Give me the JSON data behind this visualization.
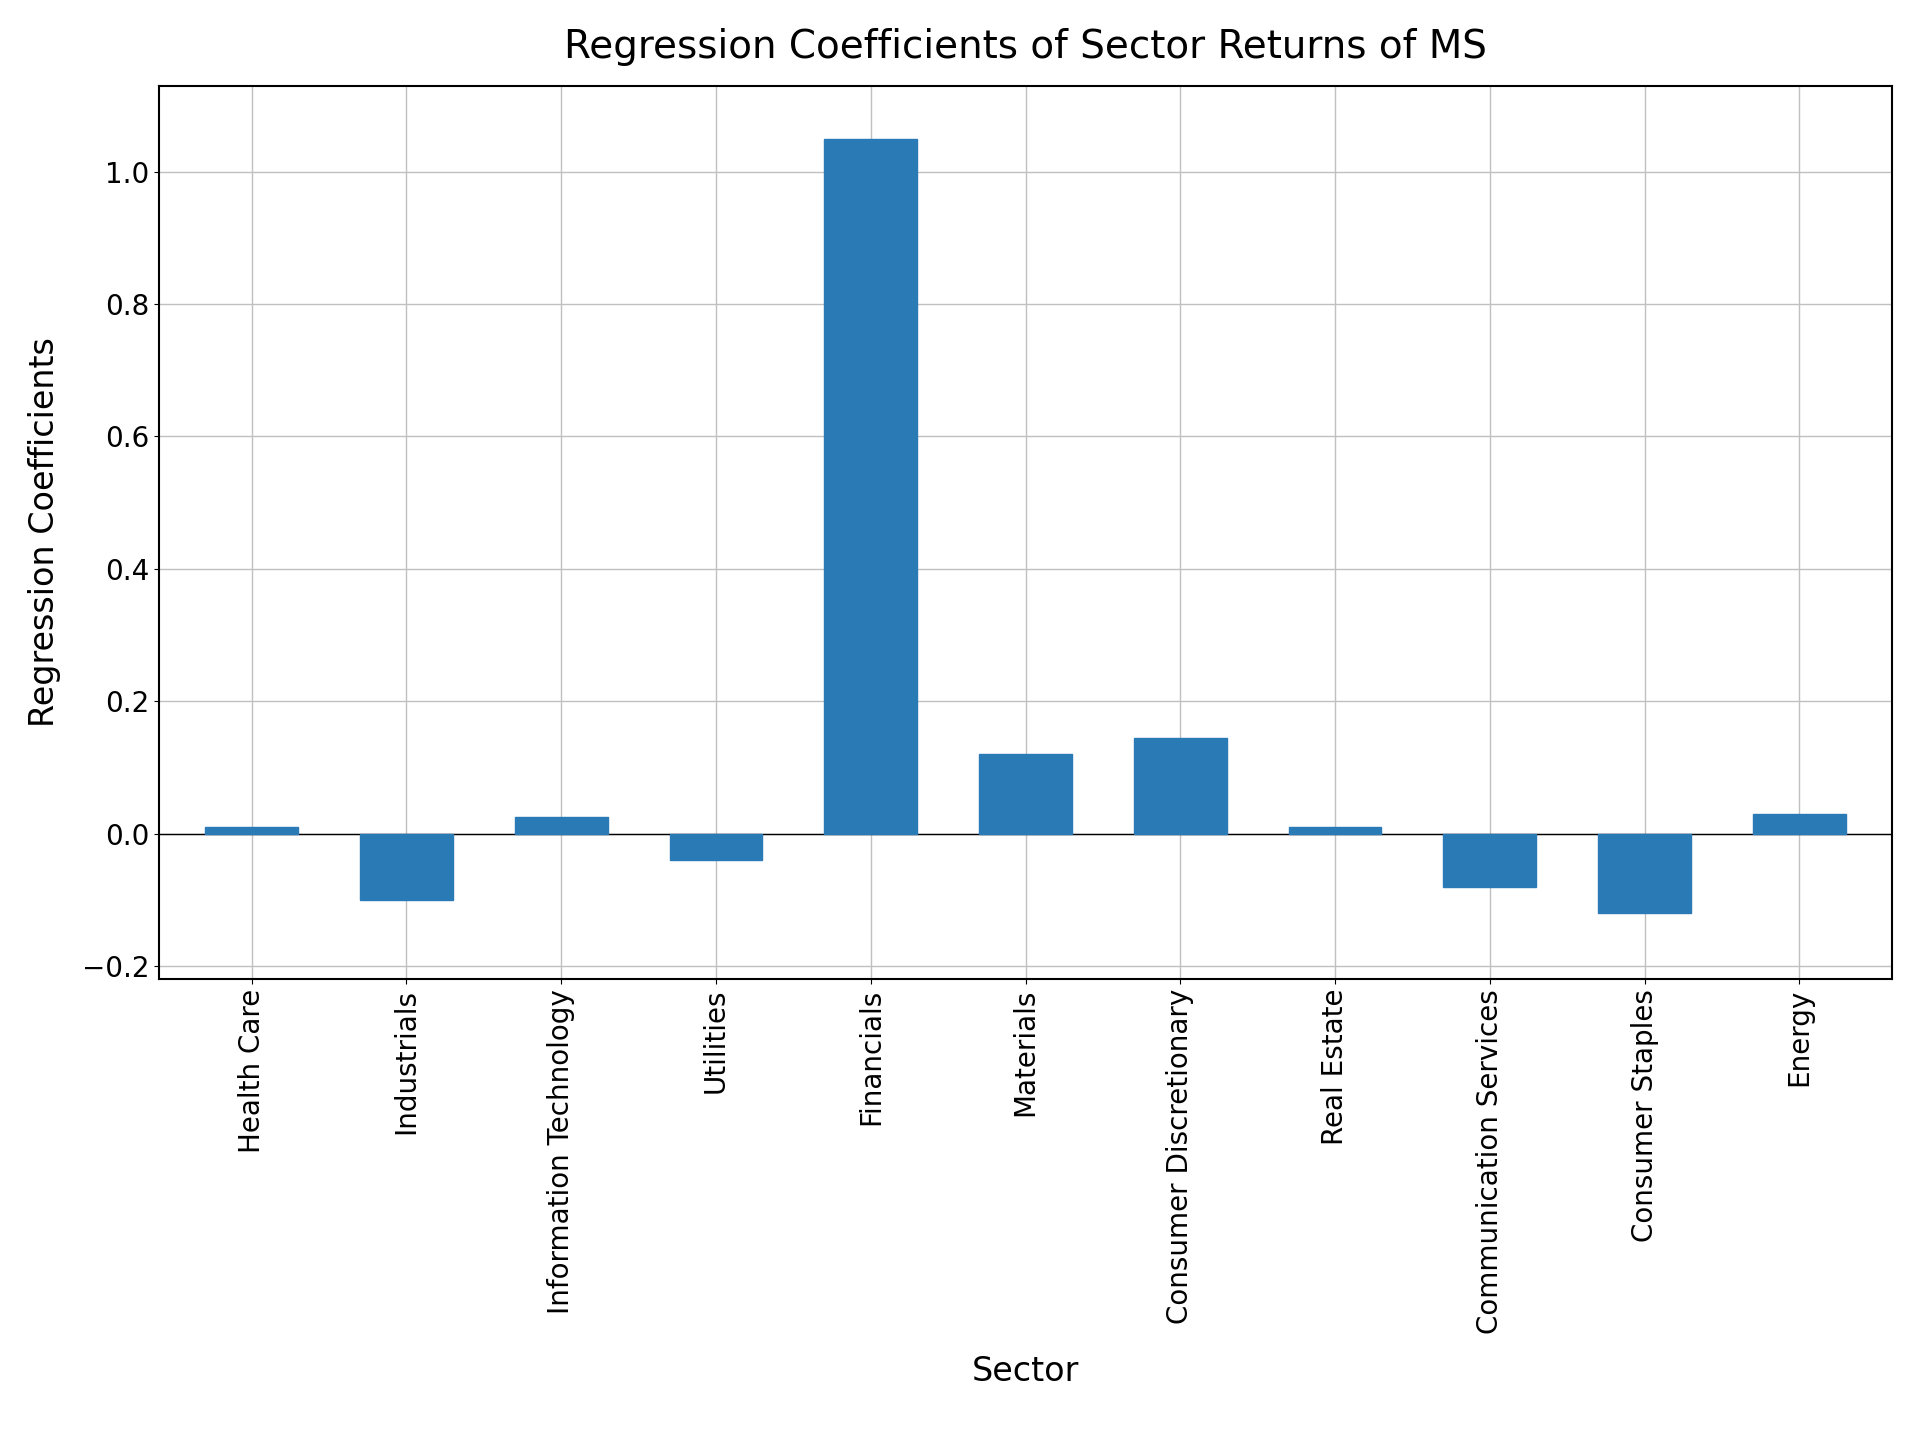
{
  "categories": [
    "Health Care",
    "Industrials",
    "Information Technology",
    "Utilities",
    "Financials",
    "Materials",
    "Consumer Discretionary",
    "Real Estate",
    "Communication Services",
    "Consumer Staples",
    "Energy"
  ],
  "values": [
    0.01,
    -0.1,
    0.025,
    -0.04,
    1.05,
    0.12,
    0.145,
    0.01,
    -0.08,
    -0.12,
    0.03
  ],
  "bar_color": "#2a7ab5",
  "title": "Regression Coefficients of Sector Returns of MS",
  "xlabel": "Sector",
  "ylabel": "Regression Coefficients",
  "title_fontsize": 28,
  "axis_label_fontsize": 24,
  "tick_fontsize": 20,
  "yticks": [
    -0.2,
    0.0,
    0.2,
    0.4,
    0.6,
    0.8,
    1.0
  ],
  "ylim": [
    -0.22,
    1.13
  ],
  "background_color": "#ffffff",
  "grid_color": "#c0c0c0",
  "bar_width": 0.6
}
